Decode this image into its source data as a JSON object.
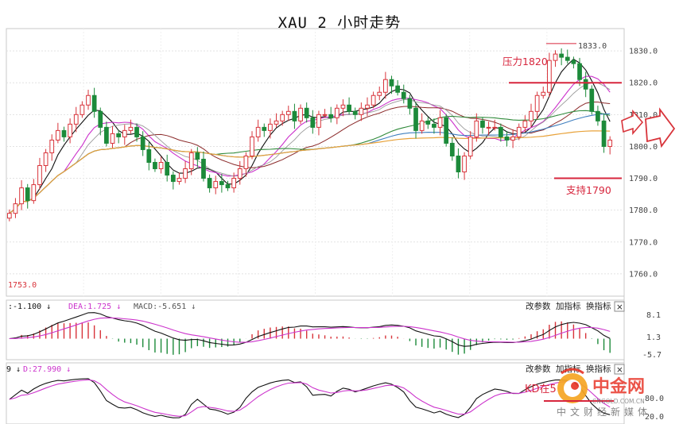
{
  "title": "XAU 2 小时走势",
  "chart_data": {
    "type": "candlestick",
    "title": "XAU 2 小时走势",
    "y_ticks": [
      1830.0,
      1820.0,
      1810.0,
      1800.0,
      1790.0,
      1780.0,
      1770.0,
      1760.0
    ],
    "ylim": [
      1753,
      1837
    ],
    "grid": true,
    "low_marker": "1753.0",
    "high_marker": "1833.0",
    "price_series": [
      1779,
      1782,
      1787,
      1783,
      1788,
      1794,
      1798,
      1802,
      1805,
      1803,
      1807,
      1810,
      1813,
      1816,
      1811,
      1806,
      1801,
      1804,
      1803,
      1805,
      1806,
      1803,
      1799,
      1795,
      1793,
      1795,
      1791,
      1789,
      1790,
      1793,
      1798,
      1796,
      1790,
      1787,
      1789,
      1788,
      1787,
      1790,
      1793,
      1797,
      1803,
      1806,
      1805,
      1807,
      1808,
      1810,
      1811,
      1808,
      1812,
      1809,
      1806,
      1810,
      1810,
      1809,
      1812,
      1813,
      1811,
      1810,
      1812,
      1813,
      1816,
      1817,
      1821,
      1819,
      1817,
      1815,
      1812,
      1805,
      1808,
      1807,
      1806,
      1809,
      1801,
      1797,
      1792,
      1797,
      1803,
      1808,
      1806,
      1806,
      1806,
      1803,
      1802,
      1803,
      1806,
      1808,
      1811,
      1816,
      1817,
      1827,
      1829,
      1828,
      1827,
      1826,
      1821,
      1818,
      1811,
      1808,
      1800,
      1802
    ],
    "annotations": [
      {
        "text": "压力1820",
        "value": 1820
      },
      {
        "text": "支持1790",
        "value": 1790
      }
    ],
    "macd_panel": {
      "dif_label": ":-1.100 ↓",
      "dea_label": "DEA:1.725 ↓",
      "macd_label": "MACD:-5.651 ↓",
      "ticks": [
        "8.1",
        "1.3",
        "-5.7"
      ]
    },
    "kd_panel": {
      "k_label": "9 ↓",
      "d_label": "D:27.990 ↓",
      "ticks": [
        "80.0",
        "20.0"
      ]
    }
  },
  "panel_buttons": {
    "change_params": "改参数",
    "add_indicator": "加指标",
    "switch_indicator": "换指标",
    "close": "×"
  },
  "colors": {
    "bull": "#d8333a",
    "bear": "#1c8a3a",
    "ma_black": "#111111",
    "ma_magenta": "#cc33cc",
    "ma_brown": "#8b2a2a",
    "ma_gray": "#9a9a9a",
    "ma_green": "#2f8a3a",
    "ma_blue": "#3f7fbf",
    "ma_orange": "#e8a23a",
    "annotation": "#d7263d"
  },
  "watermark": {
    "brand": "中金网",
    "sub": "CNGOLD.COM.CN",
    "slogan": "中文财经新媒体",
    "overlay": "KD在5"
  }
}
